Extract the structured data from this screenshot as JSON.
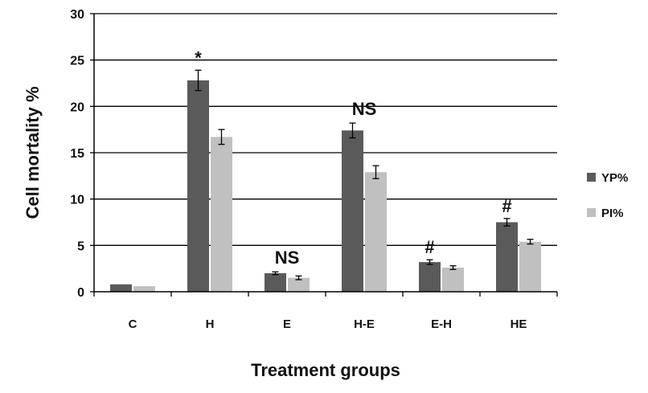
{
  "chart_data": {
    "type": "bar",
    "xlabel": "Treatment groups",
    "ylabel": "Cell mortality %",
    "ylim": [
      0,
      30
    ],
    "yticks": [
      0,
      5,
      10,
      15,
      20,
      25,
      30
    ],
    "grid": true,
    "legend_position": "right",
    "categories": [
      "C",
      "H",
      "E",
      "H-E",
      "E-H",
      "HE"
    ],
    "series": [
      {
        "name": "YP%",
        "color": "#5a5a5a",
        "values": [
          0.8,
          22.8,
          2.0,
          17.4,
          3.2,
          7.5
        ],
        "errors": [
          0.0,
          1.1,
          0.15,
          0.8,
          0.25,
          0.4
        ]
      },
      {
        "name": "PI%",
        "color": "#c0c0c0",
        "values": [
          0.6,
          16.7,
          1.5,
          12.9,
          2.6,
          5.4
        ],
        "errors": [
          0.0,
          0.8,
          0.2,
          0.7,
          0.2,
          0.25
        ]
      }
    ],
    "annotations": [
      {
        "category": "H",
        "text": "*"
      },
      {
        "category": "E",
        "text": "NS"
      },
      {
        "category": "H-E",
        "text": "NS"
      },
      {
        "category": "E-H",
        "text": "#"
      },
      {
        "category": "HE",
        "text": "#"
      }
    ]
  }
}
